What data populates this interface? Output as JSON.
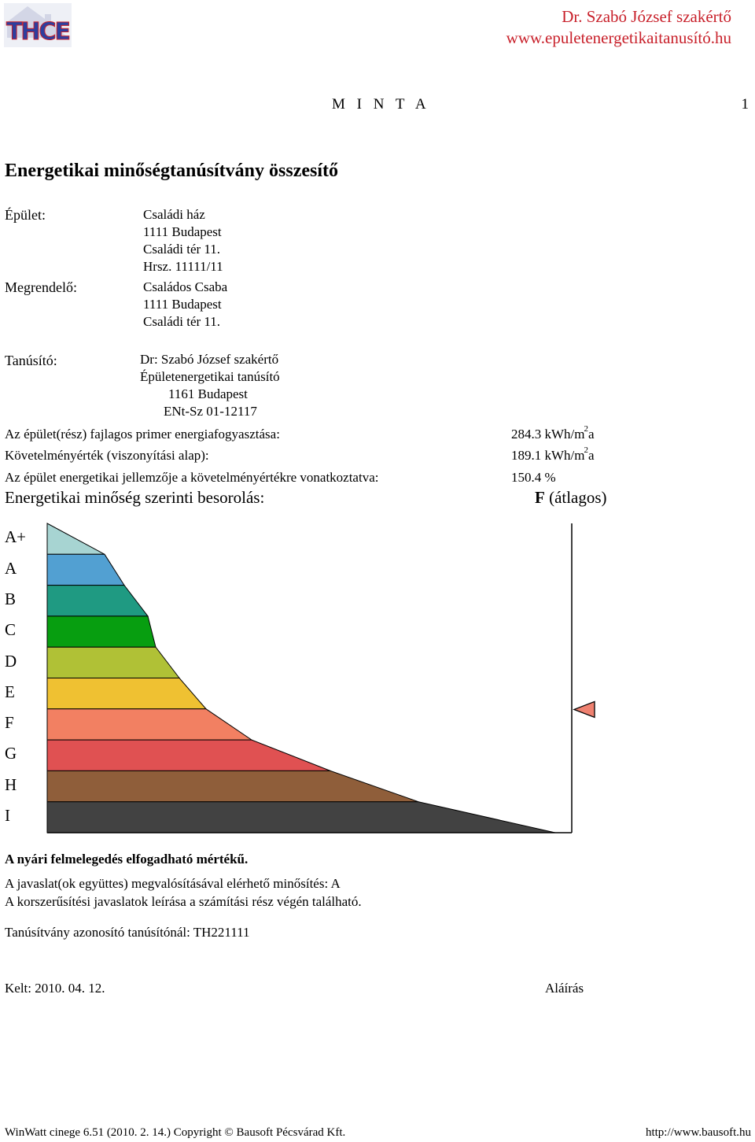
{
  "header": {
    "author": "Dr. Szabó József szakértő",
    "website": "www.epuletenergetikaitanusító.hu",
    "logo_text": "THCE",
    "watermark": "M I N T A",
    "page_number": "1"
  },
  "title": "Energetikai minőségtanúsítvány összesítő",
  "building": {
    "label": "Épület:",
    "lines": [
      "Családi ház",
      "1111 Budapest",
      "Családi tér 11.",
      "Hrsz. 11111/11"
    ]
  },
  "client": {
    "label": "Megrendelő:",
    "lines": [
      "Családos Csaba",
      "1111 Budapest",
      "Családi tér 11."
    ]
  },
  "certifier": {
    "label": "Tanúsító:",
    "lines": [
      "Dr: Szabó József szakértő",
      "Épületenergetikai tanúsító",
      "1161 Budapest",
      "ENt-Sz 01-12117"
    ]
  },
  "results": {
    "primary_label": "Az épület(rész) fajlagos primer energiafogyasztása:",
    "primary_value": "284.3 kWh/m",
    "primary_unit_tail": "a",
    "requirement_label": "Követelményérték (viszonyítási alap):",
    "requirement_value": "189.1 kWh/m",
    "requirement_unit_tail": "a",
    "unit_superscript": "2",
    "ratio_label": "Az épület energetikai jellemzője a követelményértékre vonatkoztatva:",
    "ratio_value": "150.4 %",
    "rating_label": "Energetikai minőség szerinti besorolás:",
    "rating_letter": "F",
    "rating_text": "(átlagos)"
  },
  "scale": {
    "classes": [
      "A+",
      "A",
      "B",
      "C",
      "D",
      "E",
      "F",
      "G",
      "H",
      "I"
    ],
    "colors": [
      "#a7d4d2",
      "#52a0d2",
      "#1f9a82",
      "#079e10",
      "#b0c136",
      "#efc132",
      "#f28062",
      "#e05152",
      "#8f5e3a",
      "#424242"
    ],
    "current_class": "F",
    "marker_color": "#ef8170"
  },
  "notes": {
    "summer_overheating": "A nyári felmelegedés elfogadható mértékű.",
    "achievable_rating": "A javaslat(ok együttes) megvalósításával elérhető minősítés: A",
    "upgrade_note": "A korszerűsítési javaslatok leírása a számítási rész végén található.",
    "certificate_id": "Tanúsítvány azonosító tanúsítónál: TH221111"
  },
  "signature": {
    "date": "Kelt: 2010. 04. 12.",
    "signature_label": "Aláírás"
  },
  "footer": {
    "software": "WinWatt cinege 6.51 (2010. 2. 14.) Copyright © Bausoft Pécsvárad Kft.",
    "url": "http://www.bausoft.hu"
  }
}
